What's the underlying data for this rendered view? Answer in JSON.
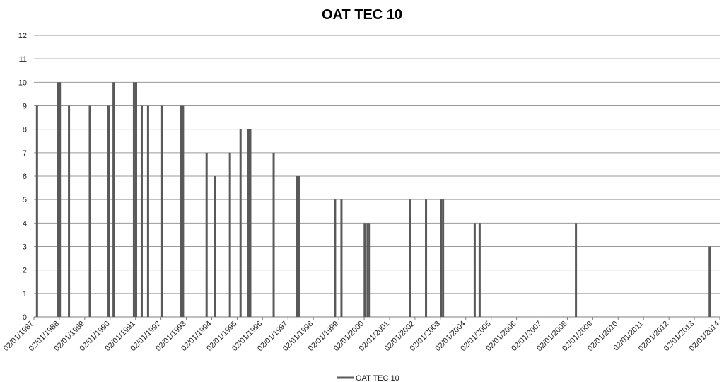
{
  "chart_data": {
    "type": "bar",
    "title": "OAT TEC 10",
    "xlabel": "",
    "ylabel": "",
    "ylim": [
      0,
      12
    ],
    "yticks": [
      "0",
      "1",
      "2",
      "3",
      "4",
      "5",
      "6",
      "7",
      "8",
      "9",
      "10",
      "11",
      "12"
    ],
    "xlim": [
      "1987-01-02",
      "2014-01-02"
    ],
    "x_tick_labels": [
      "02/01/1987",
      "02/01/1988",
      "02/01/1989",
      "02/01/1990",
      "02/01/1991",
      "02/01/1992",
      "02/01/1993",
      "02/01/1994",
      "02/01/1995",
      "02/01/1996",
      "02/01/1997",
      "02/01/1998",
      "02/01/1999",
      "02/01/2000",
      "02/01/2001",
      "02/01/2002",
      "02/01/2003",
      "02/01/2004",
      "02/01/2005",
      "02/01/2006",
      "02/01/2007",
      "02/01/2008",
      "02/01/2009",
      "02/01/2010",
      "02/01/2011",
      "02/01/2012",
      "02/01/2013",
      "02/01/2014"
    ],
    "grid": true,
    "legend_position": "bottom",
    "series": [
      {
        "name": "OAT TEC 10",
        "color": "#595959",
        "points": [
          {
            "x": "1987-02-15",
            "y": 9
          },
          {
            "x": "1987-12-10",
            "y": 10
          },
          {
            "x": "1988-01-10",
            "y": 10
          },
          {
            "x": "1988-05-20",
            "y": 9
          },
          {
            "x": "1989-03-15",
            "y": 9
          },
          {
            "x": "1989-12-10",
            "y": 9
          },
          {
            "x": "1990-02-20",
            "y": 10
          },
          {
            "x": "1990-12-10",
            "y": 10
          },
          {
            "x": "1991-01-10",
            "y": 10
          },
          {
            "x": "1991-04-01",
            "y": 9
          },
          {
            "x": "1991-07-01",
            "y": 9
          },
          {
            "x": "1992-01-20",
            "y": 9
          },
          {
            "x": "1992-10-20",
            "y": 9
          },
          {
            "x": "1992-11-15",
            "y": 9
          },
          {
            "x": "1993-10-20",
            "y": 7
          },
          {
            "x": "1994-02-20",
            "y": 6
          },
          {
            "x": "1994-09-20",
            "y": 7
          },
          {
            "x": "1995-02-20",
            "y": 8
          },
          {
            "x": "1995-06-10",
            "y": 8
          },
          {
            "x": "1995-07-10",
            "y": 8
          },
          {
            "x": "1996-06-10",
            "y": 7
          },
          {
            "x": "1997-05-10",
            "y": 6
          },
          {
            "x": "1997-06-10",
            "y": 6
          },
          {
            "x": "1998-11-10",
            "y": 5
          },
          {
            "x": "1999-02-10",
            "y": 5
          },
          {
            "x": "2000-01-10",
            "y": 4
          },
          {
            "x": "2000-02-20",
            "y": 4
          },
          {
            "x": "2000-03-20",
            "y": 4
          },
          {
            "x": "2001-10-25",
            "y": 5
          },
          {
            "x": "2002-06-10",
            "y": 5
          },
          {
            "x": "2003-01-10",
            "y": 5
          },
          {
            "x": "2003-02-10",
            "y": 5
          },
          {
            "x": "2004-05-10",
            "y": 4
          },
          {
            "x": "2004-07-20",
            "y": 4
          },
          {
            "x": "2008-05-05",
            "y": 4
          },
          {
            "x": "2013-08-10",
            "y": 3
          }
        ]
      }
    ]
  }
}
